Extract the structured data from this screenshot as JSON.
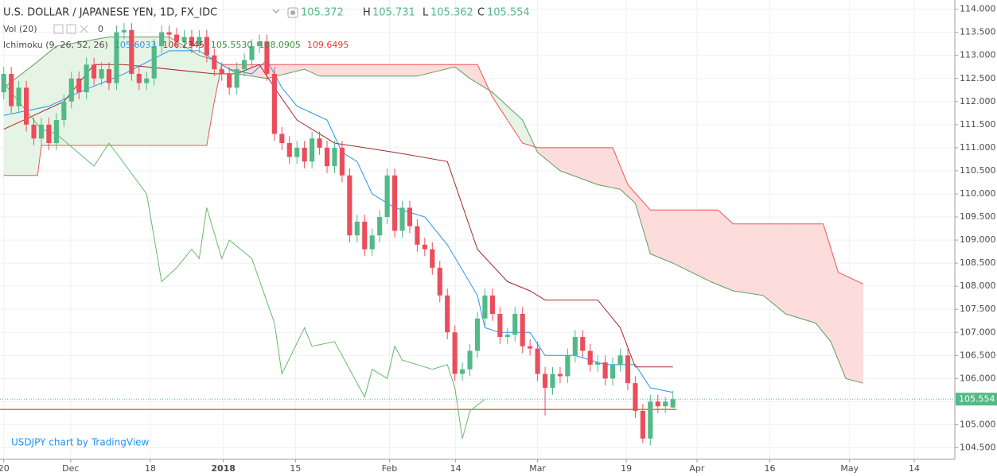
{
  "chart_data": {
    "type": "candlestick",
    "header": {
      "symbol": "U.S. DOLLAR / JAPANESE YEN, 1D, FX_IDC",
      "h": "H",
      "l": "L",
      "c": "C",
      "vol": "Vol (20)",
      "vol_value": 0,
      "ichimoku": "Ichimoku (9, 26, 52, 26)",
      "ichimoku_values": [
        {
          "text": "105.6033",
          "color": "#2196f3"
        },
        {
          "text": "106.2345",
          "color": "#a52a2a"
        },
        {
          "text": "105.5530",
          "color": "#388e3c"
        },
        {
          "text": "108.0905",
          "color": "#388e3c"
        },
        {
          "text": "109.6495",
          "color": "#e53935"
        }
      ]
    },
    "watermark": "USDJPY chart by TradingView",
    "up_color": "#53b987",
    "down_color": "#eb4d5c",
    "candles": [
      [
        112.2,
        112.75,
        112.05,
        112.6
      ],
      [
        112.6,
        112.75,
        111.75,
        111.9
      ],
      [
        111.9,
        112.45,
        111.75,
        112.3
      ],
      [
        112.3,
        112.45,
        111.35,
        111.5
      ],
      [
        111.5,
        111.65,
        111.05,
        111.2
      ],
      [
        111.2,
        111.65,
        111.05,
        111.5
      ],
      [
        111.5,
        111.65,
        110.95,
        111.1
      ],
      [
        111.1,
        111.75,
        110.95,
        111.6
      ],
      [
        111.6,
        112.15,
        111.45,
        112.0
      ],
      [
        112.0,
        112.65,
        111.85,
        112.5
      ],
      [
        112.5,
        112.65,
        112.05,
        112.2
      ],
      [
        112.2,
        112.95,
        112.05,
        112.8
      ],
      [
        112.8,
        112.95,
        112.35,
        112.5
      ],
      [
        112.5,
        112.85,
        112.35,
        112.7
      ],
      [
        112.7,
        112.85,
        112.25,
        112.4
      ],
      [
        112.4,
        113.65,
        112.25,
        113.5
      ],
      [
        113.5,
        113.7,
        113.35,
        113.55
      ],
      [
        113.55,
        113.7,
        112.45,
        112.6
      ],
      [
        112.6,
        112.75,
        112.25,
        112.4
      ],
      [
        112.4,
        112.65,
        112.25,
        112.5
      ],
      [
        112.5,
        113.35,
        112.35,
        113.2
      ],
      [
        113.2,
        113.65,
        113.05,
        113.5
      ],
      [
        113.5,
        113.65,
        113.3,
        113.45
      ],
      [
        113.45,
        113.6,
        113.15,
        113.3
      ],
      [
        113.3,
        113.55,
        113.15,
        113.4
      ],
      [
        113.4,
        113.55,
        113.05,
        113.2
      ],
      [
        113.2,
        113.55,
        113.05,
        113.4
      ],
      [
        113.4,
        113.55,
        112.85,
        113.0
      ],
      [
        113.0,
        113.15,
        112.55,
        112.7
      ],
      [
        112.7,
        112.85,
        112.45,
        112.6
      ],
      [
        112.6,
        112.75,
        112.15,
        112.3
      ],
      [
        112.3,
        112.85,
        112.15,
        112.7
      ],
      [
        112.7,
        113.05,
        112.55,
        112.9
      ],
      [
        112.9,
        113.35,
        112.75,
        113.2
      ],
      [
        113.2,
        113.45,
        113.05,
        113.3
      ],
      [
        113.3,
        113.45,
        112.45,
        112.6
      ],
      [
        112.6,
        112.75,
        111.15,
        111.3
      ],
      [
        111.3,
        111.45,
        110.95,
        111.1
      ],
      [
        111.1,
        111.25,
        110.65,
        110.8
      ],
      [
        110.8,
        111.15,
        110.65,
        111.0
      ],
      [
        111.0,
        111.15,
        110.55,
        110.7
      ],
      [
        110.7,
        111.35,
        110.55,
        111.2
      ],
      [
        111.2,
        111.35,
        110.85,
        111.0
      ],
      [
        111.0,
        111.15,
        110.45,
        110.6
      ],
      [
        110.6,
        111.15,
        110.45,
        111.0
      ],
      [
        111.0,
        111.15,
        110.25,
        110.4
      ],
      [
        110.4,
        110.55,
        108.95,
        109.1
      ],
      [
        109.1,
        109.55,
        108.95,
        109.4
      ],
      [
        109.4,
        109.55,
        108.65,
        108.8
      ],
      [
        108.8,
        109.25,
        108.65,
        109.1
      ],
      [
        109.1,
        109.65,
        108.95,
        109.5
      ],
      [
        109.5,
        110.55,
        109.35,
        110.4
      ],
      [
        110.4,
        110.55,
        109.05,
        109.2
      ],
      [
        109.2,
        109.85,
        109.05,
        109.7
      ],
      [
        109.7,
        109.85,
        109.15,
        109.3
      ],
      [
        109.3,
        109.45,
        108.75,
        108.9
      ],
      [
        108.9,
        109.05,
        108.65,
        108.8
      ],
      [
        108.8,
        108.95,
        108.25,
        108.4
      ],
      [
        108.4,
        108.55,
        107.65,
        107.8
      ],
      [
        107.8,
        107.95,
        106.85,
        107.0
      ],
      [
        107.0,
        107.15,
        105.95,
        106.1
      ],
      [
        106.1,
        106.35,
        105.95,
        106.2
      ],
      [
        106.2,
        106.75,
        106.05,
        106.6
      ],
      [
        106.6,
        107.45,
        106.45,
        107.3
      ],
      [
        107.3,
        107.95,
        107.15,
        107.8
      ],
      [
        107.8,
        107.95,
        107.25,
        107.4
      ],
      [
        107.4,
        107.55,
        106.75,
        106.9
      ],
      [
        106.9,
        107.1,
        106.75,
        106.95
      ],
      [
        106.95,
        107.55,
        106.8,
        107.4
      ],
      [
        107.4,
        107.55,
        106.55,
        106.7
      ],
      [
        106.7,
        106.85,
        106.5,
        106.65
      ],
      [
        106.65,
        106.8,
        105.95,
        106.1
      ],
      [
        106.1,
        106.25,
        105.2,
        105.8
      ],
      [
        105.8,
        106.25,
        105.65,
        106.1
      ],
      [
        106.1,
        106.25,
        105.9,
        106.05
      ],
      [
        106.05,
        106.65,
        105.9,
        106.5
      ],
      [
        106.5,
        107.05,
        106.35,
        106.9
      ],
      [
        106.9,
        107.05,
        106.45,
        106.6
      ],
      [
        106.6,
        106.75,
        106.15,
        106.3
      ],
      [
        106.3,
        106.5,
        106.15,
        106.35
      ],
      [
        106.35,
        106.5,
        105.85,
        106.0
      ],
      [
        106.0,
        106.45,
        105.85,
        106.3
      ],
      [
        106.3,
        106.65,
        106.15,
        106.5
      ],
      [
        106.5,
        106.65,
        105.75,
        105.9
      ],
      [
        105.9,
        106.05,
        105.15,
        105.3
      ],
      [
        105.3,
        105.45,
        104.6,
        104.7
      ],
      [
        104.7,
        105.65,
        104.55,
        105.5
      ],
      [
        105.5,
        105.65,
        105.25,
        105.4
      ],
      [
        105.4,
        105.6,
        105.25,
        105.5
      ],
      [
        105.372,
        105.731,
        105.362,
        105.554
      ]
    ],
    "lines": [
      {
        "color": "#2196f3",
        "x": [
          0,
          6,
          10,
          16,
          22,
          26,
          30,
          33,
          35,
          37,
          39,
          43,
          45,
          47,
          49,
          52,
          56,
          59,
          63,
          64,
          66,
          70,
          72,
          76,
          80,
          84,
          86,
          89
        ],
        "values": [
          111.7,
          111.9,
          112.2,
          112.6,
          113.1,
          113.1,
          112.7,
          112.6,
          112.9,
          112.3,
          111.9,
          111.6,
          110.9,
          110.7,
          110.0,
          109.7,
          109.5,
          108.9,
          107.8,
          107.1,
          107.0,
          107.0,
          106.5,
          106.5,
          106.3,
          106.3,
          105.8,
          105.7
        ]
      },
      {
        "color": "#a52a2a",
        "x": [
          0,
          8,
          12,
          16,
          28,
          31,
          34,
          36,
          39,
          44,
          48,
          52,
          59,
          63,
          67,
          70,
          72,
          79,
          82,
          84,
          89
        ],
        "values": [
          111.4,
          112.0,
          112.8,
          112.8,
          112.6,
          112.6,
          112.8,
          112.3,
          111.6,
          111.1,
          111.0,
          110.9,
          110.7,
          108.8,
          108.1,
          107.9,
          107.7,
          107.7,
          107.1,
          106.25,
          106.25
        ]
      },
      {
        "color": "#66bb6a",
        "x": [
          0,
          5,
          7,
          12,
          14,
          19,
          21,
          23,
          25,
          26,
          27,
          29,
          30,
          33,
          36,
          37,
          40,
          41,
          44,
          46,
          48,
          49,
          51,
          52,
          53,
          57,
          59,
          60,
          61,
          62,
          64
        ],
        "values": [
          112.4,
          111.4,
          111.3,
          110.6,
          111.1,
          110.0,
          108.1,
          108.4,
          108.8,
          108.6,
          109.7,
          108.6,
          109.0,
          108.6,
          107.2,
          106.1,
          107.1,
          106.7,
          106.8,
          106.2,
          105.6,
          106.2,
          106.0,
          106.7,
          106.4,
          106.2,
          106.3,
          105.8,
          104.7,
          105.3,
          105.55
        ]
      }
    ],
    "cloud": {
      "up_color": "#e6f4e6",
      "down_color": "#fddcdc",
      "a": {
        "color": "#5f9f5f",
        "x": [
          0,
          4,
          7,
          14,
          22,
          26,
          28,
          31,
          35,
          40,
          42,
          55,
          60,
          62,
          65,
          69,
          71,
          74,
          79,
          82,
          84,
          86,
          89,
          94,
          97,
          101,
          104,
          108,
          110,
          112,
          114.3
        ],
        "values": [
          112.3,
          112.8,
          113.2,
          113.4,
          113.4,
          113.0,
          112.9,
          112.6,
          112.5,
          112.7,
          112.55,
          112.55,
          112.75,
          112.5,
          112.2,
          111.6,
          110.9,
          110.5,
          110.2,
          110.1,
          109.8,
          108.7,
          108.5,
          108.1,
          107.9,
          107.8,
          107.4,
          107.2,
          106.8,
          106.0,
          105.9
        ]
      },
      "b": {
        "color": "#ef5350",
        "x": [
          0,
          4.5,
          5,
          27,
          28,
          29,
          63,
          65,
          69,
          71,
          81,
          83,
          86,
          95,
          97,
          109,
          111,
          114.3
        ],
        "values": [
          110.4,
          110.4,
          111.05,
          111.05,
          112.0,
          112.8,
          112.8,
          112.1,
          111.1,
          111.0,
          111.0,
          110.2,
          109.65,
          109.65,
          109.35,
          109.35,
          108.3,
          108.05
        ]
      }
    },
    "hline": {
      "value": 105.33,
      "color": "#f57c00"
    },
    "ylim": [
      104.25,
      114.2
    ],
    "yticks": [
      {
        "value": 104.5,
        "label": "104.500"
      },
      {
        "value": 105,
        "label": "105.000"
      },
      {
        "value": 105.5,
        "label": "105.500"
      },
      {
        "value": 106,
        "label": "106.000"
      },
      {
        "value": 106.5,
        "label": "106.500"
      },
      {
        "value": 107,
        "label": "107.000"
      },
      {
        "value": 107.5,
        "label": "107.500"
      },
      {
        "value": 108,
        "label": "108.000"
      },
      {
        "value": 108.5,
        "label": "108.500"
      },
      {
        "value": 109,
        "label": "109.000"
      },
      {
        "value": 109.5,
        "label": "109.500"
      },
      {
        "value": 110,
        "label": "110.000"
      },
      {
        "value": 110.5,
        "label": "110.500"
      },
      {
        "value": 111,
        "label": "111.000"
      },
      {
        "value": 111.5,
        "label": "111.500"
      },
      {
        "value": 112,
        "label": "112.000"
      },
      {
        "value": 112.5,
        "label": "112.500"
      },
      {
        "value": 113,
        "label": "113.000"
      },
      {
        "value": 113.5,
        "label": "113.500"
      },
      {
        "value": 114,
        "label": "114.000"
      }
    ],
    "xlim": [
      -0.5,
      126.5
    ],
    "xticks": [
      {
        "value": 0,
        "label": "20"
      },
      {
        "value": 8.9,
        "label": "Dec"
      },
      {
        "value": 19.5,
        "label": "18"
      },
      {
        "value": 29.2,
        "label": "2018",
        "bold": true
      },
      {
        "value": 38.8,
        "label": "15"
      },
      {
        "value": 51.3,
        "label": "Feb"
      },
      {
        "value": 60.1,
        "label": "14"
      },
      {
        "value": 71,
        "label": "Mar"
      },
      {
        "value": 82.8,
        "label": "19"
      },
      {
        "value": 92.2,
        "label": "Apr"
      },
      {
        "value": 101.9,
        "label": "16"
      },
      {
        "value": 112.5,
        "label": "May"
      },
      {
        "value": 121.1,
        "label": "14"
      }
    ],
    "grid": true
  }
}
